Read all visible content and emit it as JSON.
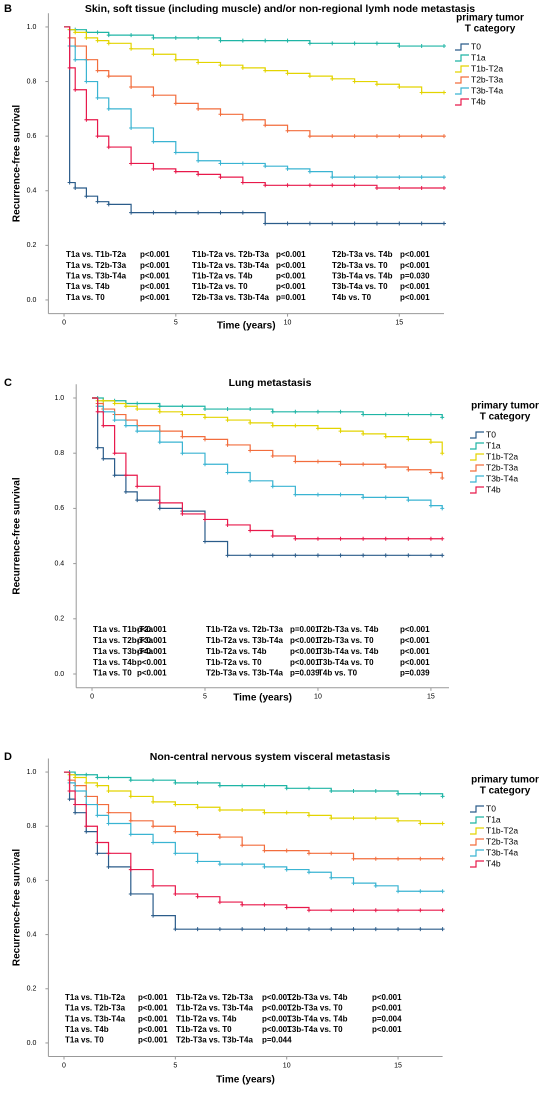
{
  "chart_data": [
    {
      "type": "km",
      "panel": "B",
      "title": "Skin, soft tissue (including muscle) and/or non-regional lymh node metastasis",
      "xlabel": "Time (years)",
      "ylabel": "Recurrence-free survival",
      "legend_title": [
        "primary tumor",
        "T category"
      ],
      "xlim": [
        -0.7,
        17
      ],
      "ylim": [
        -0.05,
        1.05
      ],
      "xticks": [
        0,
        5,
        10,
        15
      ],
      "yticks": [
        {
          "value": 0,
          "label": "0.0"
        },
        {
          "value": 0.2,
          "label": "0.2"
        },
        {
          "value": 0.4,
          "label": "0.4"
        },
        {
          "value": 0.6,
          "label": "0.6"
        },
        {
          "value": 0.8,
          "label": "0.8"
        },
        {
          "value": 1,
          "label": "1.0"
        }
      ],
      "x": [
        0,
        0.25,
        0.5,
        1,
        1.5,
        2,
        3,
        4,
        5,
        6,
        7,
        8,
        9,
        10,
        11,
        12,
        13,
        14,
        15,
        16,
        17
      ],
      "series": [
        {
          "name": "T0",
          "color": "#2b5c8a",
          "values": [
            1,
            0.43,
            0.41,
            0.38,
            0.36,
            0.35,
            0.32,
            0.32,
            0.32,
            0.32,
            0.32,
            0.32,
            0.28,
            0.28,
            0.28,
            0.28,
            0.28,
            0.28,
            0.28,
            0.28,
            0.28
          ]
        },
        {
          "name": "T1a",
          "color": "#1fb5a5",
          "values": [
            1,
            0.99,
            0.99,
            0.98,
            0.98,
            0.97,
            0.97,
            0.96,
            0.96,
            0.96,
            0.95,
            0.95,
            0.95,
            0.95,
            0.94,
            0.94,
            0.94,
            0.94,
            0.93,
            0.93,
            0.93
          ]
        },
        {
          "name": "T1b-T2a",
          "color": "#e3d400",
          "values": [
            1,
            0.99,
            0.98,
            0.96,
            0.95,
            0.94,
            0.92,
            0.9,
            0.88,
            0.87,
            0.86,
            0.85,
            0.84,
            0.83,
            0.82,
            0.81,
            0.8,
            0.79,
            0.78,
            0.76,
            0.76
          ]
        },
        {
          "name": "T2b-T3a",
          "color": "#f26d3d",
          "values": [
            1,
            0.96,
            0.93,
            0.88,
            0.84,
            0.82,
            0.78,
            0.75,
            0.72,
            0.7,
            0.68,
            0.66,
            0.64,
            0.62,
            0.6,
            0.6,
            0.6,
            0.6,
            0.6,
            0.6,
            0.6
          ]
        },
        {
          "name": "T3b-T4a",
          "color": "#3ab4d2",
          "values": [
            1,
            0.93,
            0.88,
            0.8,
            0.74,
            0.7,
            0.63,
            0.58,
            0.54,
            0.51,
            0.5,
            0.5,
            0.49,
            0.48,
            0.47,
            0.45,
            0.45,
            0.45,
            0.45,
            0.45,
            0.45
          ]
        },
        {
          "name": "T4b",
          "color": "#e8194b",
          "values": [
            1,
            0.85,
            0.77,
            0.66,
            0.6,
            0.56,
            0.5,
            0.48,
            0.47,
            0.46,
            0.45,
            0.43,
            0.42,
            0.42,
            0.42,
            0.42,
            0.42,
            0.41,
            0.41,
            0.41,
            0.41
          ]
        }
      ],
      "comparisons": [
        [
          [
            "T1a vs. T1b-T2a",
            "p<0.001"
          ],
          [
            "T1a vs. T2b-T3a",
            "p<0.001"
          ],
          [
            "T1a vs. T3b-T4a",
            "p<0.001"
          ],
          [
            "T1a vs. T4b",
            "p<0.001"
          ],
          [
            "T1a vs. T0",
            "p<0.001"
          ]
        ],
        [
          [
            "T1b-T2a vs. T2b-T3a",
            "p<0.001"
          ],
          [
            "T1b-T2a vs. T3b-T4a",
            "p<0.001"
          ],
          [
            "T1b-T2a vs. T4b",
            "p<0.001"
          ],
          [
            "T1b-T2a vs. T0",
            "p<0.001"
          ],
          [
            "T2b-T3a vs. T3b-T4a",
            "p=0.001"
          ]
        ],
        [
          [
            "T2b-T3a vs. T4b",
            "p<0.001"
          ],
          [
            "T2b-T3a vs. T0",
            "p<0.001"
          ],
          [
            "T3b-T4a vs. T4b",
            "p=0.030"
          ],
          [
            "T3b-T4a vs. T0",
            "p<0.001"
          ],
          [
            "T4b vs. T0",
            "p<0.001"
          ]
        ]
      ]
    },
    {
      "type": "km",
      "panel": "C",
      "title": "Lung metastasis",
      "xlabel": "Time (years)",
      "ylabel": "Recurrence-free survival",
      "legend_title": [
        "primary tumor",
        "T category"
      ],
      "xlim": [
        -0.7,
        15.8
      ],
      "ylim": [
        -0.05,
        1.05
      ],
      "xticks": [
        0,
        5,
        10,
        15
      ],
      "yticks": [
        {
          "value": 0,
          "label": "0.0"
        },
        {
          "value": 0.2,
          "label": "0.2"
        },
        {
          "value": 0.4,
          "label": "0.4"
        },
        {
          "value": 0.6,
          "label": "0.6"
        },
        {
          "value": 0.8,
          "label": "0.8"
        },
        {
          "value": 1,
          "label": "1.0"
        }
      ],
      "x": [
        0,
        0.25,
        0.5,
        1,
        1.5,
        2,
        3,
        4,
        5,
        6,
        7,
        8,
        9,
        10,
        11,
        12,
        13,
        14,
        15,
        15.5
      ],
      "series": [
        {
          "name": "T0",
          "color": "#2b5c8a",
          "values": [
            1,
            0.82,
            0.78,
            0.72,
            0.66,
            0.63,
            0.6,
            0.59,
            0.48,
            0.43,
            0.43,
            0.43,
            0.43,
            0.43,
            0.43,
            0.43,
            0.43,
            0.43,
            0.43,
            0.43
          ]
        },
        {
          "name": "T1a",
          "color": "#1fb5a5",
          "values": [
            1,
            1,
            0.99,
            0.99,
            0.98,
            0.98,
            0.97,
            0.97,
            0.96,
            0.96,
            0.96,
            0.95,
            0.95,
            0.95,
            0.95,
            0.94,
            0.94,
            0.94,
            0.94,
            0.93
          ]
        },
        {
          "name": "T1b-T2a",
          "color": "#e3d400",
          "values": [
            1,
            0.99,
            0.99,
            0.98,
            0.97,
            0.96,
            0.95,
            0.94,
            0.93,
            0.92,
            0.91,
            0.9,
            0.9,
            0.89,
            0.88,
            0.87,
            0.86,
            0.85,
            0.84,
            0.8
          ]
        },
        {
          "name": "T2b-T3a",
          "color": "#f26d3d",
          "values": [
            1,
            0.98,
            0.96,
            0.94,
            0.92,
            0.9,
            0.88,
            0.86,
            0.85,
            0.83,
            0.81,
            0.79,
            0.77,
            0.77,
            0.76,
            0.76,
            0.75,
            0.74,
            0.73,
            0.71
          ]
        },
        {
          "name": "T3b-T4a",
          "color": "#3ab4d2",
          "values": [
            1,
            0.97,
            0.95,
            0.92,
            0.9,
            0.88,
            0.84,
            0.8,
            0.76,
            0.73,
            0.7,
            0.68,
            0.65,
            0.65,
            0.65,
            0.64,
            0.64,
            0.63,
            0.61,
            0.6
          ]
        },
        {
          "name": "T4b",
          "color": "#e8194b",
          "values": [
            1,
            0.95,
            0.9,
            0.8,
            0.72,
            0.68,
            0.62,
            0.58,
            0.56,
            0.54,
            0.52,
            0.5,
            0.49,
            0.49,
            0.49,
            0.49,
            0.49,
            0.49,
            0.49,
            0.49
          ]
        }
      ],
      "comparisons": [
        [
          [
            "T1a vs. T1b-T2a",
            "p<0.001"
          ],
          [
            "T1a vs. T2b-T3a",
            "p<0.001"
          ],
          [
            "T1a vs. T3b-T4a",
            "p<0.001"
          ],
          [
            "T1a vs. T4b",
            "p<0.001"
          ],
          [
            "T1a vs. T0",
            "p<0.001"
          ]
        ],
        [
          [
            "T1b-T2a vs. T2b-T3a",
            "p=0.001"
          ],
          [
            "T1b-T2a vs. T3b-T4a",
            "p<0.001"
          ],
          [
            "T1b-T2a vs. T4b",
            "p<0.001"
          ],
          [
            "T1b-T2a vs. T0",
            "p<0.001"
          ],
          [
            "T2b-T3a vs. T3b-T4a",
            "p=0.039"
          ]
        ],
        [
          [
            "T2b-T3a vs. T4b",
            "p<0.001"
          ],
          [
            "T2b-T3a vs. T0",
            "p<0.001"
          ],
          [
            "T3b-T4a vs. T4b",
            "p<0.001"
          ],
          [
            "T3b-T4a vs. T0",
            "p<0.001"
          ],
          [
            "T4b vs. T0",
            "p=0.039"
          ]
        ]
      ]
    },
    {
      "type": "km",
      "panel": "D",
      "title": "Non-central nervous system visceral metastasis",
      "xlabel": "Time (years)",
      "ylabel": "Recurrence-free survival",
      "legend_title": [
        "primary tumor",
        "T category"
      ],
      "xlim": [
        -0.7,
        17
      ],
      "ylim": [
        -0.05,
        1.05
      ],
      "xticks": [
        0,
        5,
        10,
        15
      ],
      "yticks": [
        {
          "value": 0,
          "label": "0.0"
        },
        {
          "value": 0.2,
          "label": "0.2"
        },
        {
          "value": 0.4,
          "label": "0.4"
        },
        {
          "value": 0.6,
          "label": "0.6"
        },
        {
          "value": 0.8,
          "label": "0.8"
        },
        {
          "value": 1,
          "label": "1.0"
        }
      ],
      "x": [
        0,
        0.25,
        0.5,
        1,
        1.5,
        2,
        3,
        4,
        5,
        6,
        7,
        8,
        9,
        10,
        11,
        12,
        13,
        14,
        15,
        16,
        17
      ],
      "series": [
        {
          "name": "T0",
          "color": "#2b5c8a",
          "values": [
            1,
            0.9,
            0.85,
            0.78,
            0.7,
            0.65,
            0.55,
            0.47,
            0.42,
            0.42,
            0.42,
            0.42,
            0.42,
            0.42,
            0.42,
            0.42,
            0.42,
            0.42,
            0.42,
            0.42,
            0.42
          ]
        },
        {
          "name": "T1a",
          "color": "#1fb5a5",
          "values": [
            1,
            1,
            0.99,
            0.99,
            0.98,
            0.98,
            0.97,
            0.97,
            0.96,
            0.96,
            0.95,
            0.95,
            0.95,
            0.94,
            0.94,
            0.93,
            0.93,
            0.93,
            0.92,
            0.92,
            0.91
          ]
        },
        {
          "name": "T1b-T2a",
          "color": "#e3d400",
          "values": [
            1,
            0.99,
            0.98,
            0.96,
            0.95,
            0.93,
            0.91,
            0.89,
            0.88,
            0.87,
            0.86,
            0.86,
            0.85,
            0.85,
            0.84,
            0.83,
            0.83,
            0.83,
            0.82,
            0.81,
            0.81
          ]
        },
        {
          "name": "T2b-T3a",
          "color": "#f26d3d",
          "values": [
            1,
            0.97,
            0.95,
            0.91,
            0.88,
            0.85,
            0.82,
            0.8,
            0.78,
            0.77,
            0.76,
            0.73,
            0.71,
            0.71,
            0.7,
            0.7,
            0.68,
            0.68,
            0.68,
            0.68,
            0.68
          ]
        },
        {
          "name": "T3b-T4a",
          "color": "#3ab4d2",
          "values": [
            1,
            0.96,
            0.93,
            0.88,
            0.84,
            0.81,
            0.77,
            0.74,
            0.7,
            0.67,
            0.66,
            0.66,
            0.65,
            0.64,
            0.63,
            0.61,
            0.59,
            0.58,
            0.56,
            0.56,
            0.56
          ]
        },
        {
          "name": "T4b",
          "color": "#e8194b",
          "values": [
            1,
            0.93,
            0.88,
            0.8,
            0.74,
            0.7,
            0.64,
            0.58,
            0.55,
            0.54,
            0.52,
            0.51,
            0.51,
            0.5,
            0.49,
            0.49,
            0.49,
            0.49,
            0.49,
            0.49,
            0.49
          ]
        }
      ],
      "comparisons": [
        [
          [
            "T1a vs. T1b-T2a",
            "p<0.001"
          ],
          [
            "T1a vs. T2b-T3a",
            "p<0.001"
          ],
          [
            "T1a vs. T3b-T4a",
            "p<0.001"
          ],
          [
            "T1a vs. T4b",
            "p<0.001"
          ],
          [
            "T1a vs. T0",
            "p<0.001"
          ]
        ],
        [
          [
            "T1b-T2a vs. T2b-T3a",
            "p<0.001"
          ],
          [
            "T1b-T2a vs. T3b-T4a",
            "p<0.001"
          ],
          [
            "T1b-T2a vs. T4b",
            "p<0.001"
          ],
          [
            "T1b-T2a vs. T0",
            "p<0.001"
          ],
          [
            "T2b-T3a vs. T3b-T4a",
            "p=0.044"
          ]
        ],
        [
          [
            "T2b-T3a vs. T4b",
            "p<0.001"
          ],
          [
            "T2b-T3a vs. T0",
            "p<0.001"
          ],
          [
            "T3b-T4a vs. T4b",
            "p=0.004"
          ],
          [
            "T3b-T4a vs. T0",
            "p<0.001"
          ]
        ]
      ]
    }
  ]
}
